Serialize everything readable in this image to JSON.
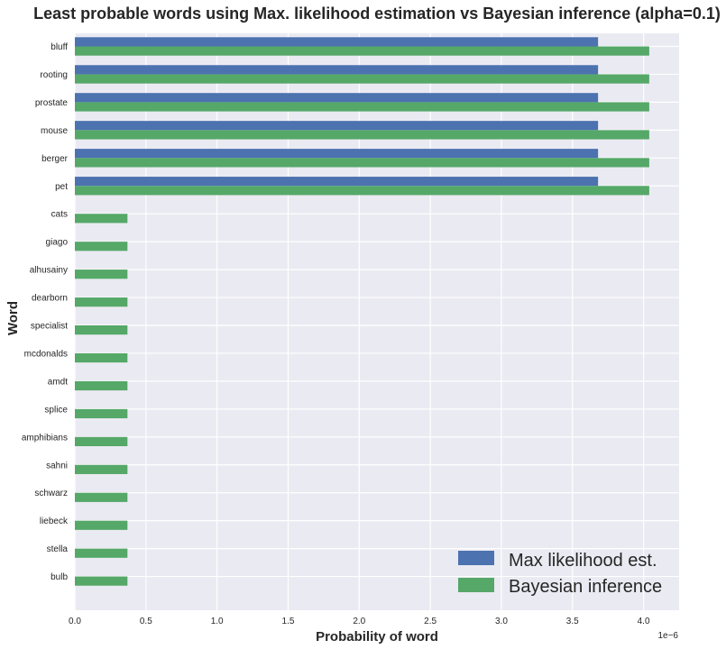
{
  "chart_data": {
    "type": "bar",
    "orientation": "horizontal",
    "title": "Least probable words using Max. likelihood estimation vs Bayesian inference (alpha=0.1)",
    "xlabel": "Probability of word",
    "ylabel": "Word",
    "x_scale_label": "1e−6",
    "xlim": [
      0,
      4.25
    ],
    "x_ticks": [
      0.0,
      0.5,
      1.0,
      1.5,
      2.0,
      2.5,
      3.0,
      3.5,
      4.0
    ],
    "x_tick_labels": [
      "0.0",
      "0.5",
      "1.0",
      "1.5",
      "2.0",
      "2.5",
      "3.0",
      "3.5",
      "4.0"
    ],
    "grid": true,
    "legend_position": "lower-right",
    "categories": [
      "bluff",
      "rooting",
      "prostate",
      "mouse",
      "berger",
      "pet",
      "cats",
      "giago",
      "alhusainy",
      "dearborn",
      "specialist",
      "mcdonalds",
      "amdt",
      "splice",
      "amphibians",
      "sahni",
      "schwarz",
      "liebeck",
      "stella",
      "bulb"
    ],
    "series": [
      {
        "name": "Max likelihood est.",
        "color": "#4c72b0",
        "values": [
          3.68,
          3.68,
          3.68,
          3.68,
          3.68,
          3.68,
          0,
          0,
          0,
          0,
          0,
          0,
          0,
          0,
          0,
          0,
          0,
          0,
          0,
          0
        ]
      },
      {
        "name": "Bayesian inference",
        "color": "#55a868",
        "values": [
          4.04,
          4.04,
          4.04,
          4.04,
          4.04,
          4.04,
          0.37,
          0.37,
          0.37,
          0.37,
          0.37,
          0.37,
          0.37,
          0.37,
          0.37,
          0.37,
          0.37,
          0.37,
          0.37,
          0.37
        ]
      }
    ],
    "colors": {
      "plot_background": "#eaeaf2",
      "grid": "#ffffff",
      "text": "#262626"
    }
  }
}
